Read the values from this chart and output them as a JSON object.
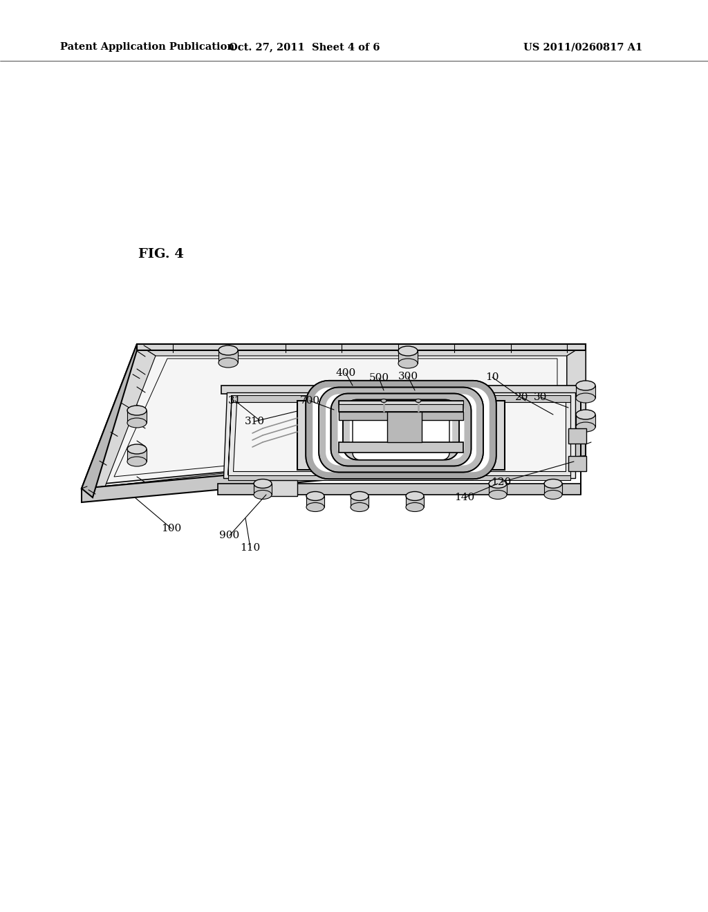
{
  "header_left": "Patent Application Publication",
  "header_mid": "Oct. 27, 2011  Sheet 4 of 6",
  "header_right": "US 2011/0260817 A1",
  "fig_label": "FIG. 4",
  "bg": "#ffffff",
  "lc": "#000000",
  "gray0": "#f5f5f5",
  "gray1": "#e8e8e8",
  "gray2": "#d8d8d8",
  "gray3": "#c8c8c8",
  "gray4": "#b8b8b8",
  "gray5": "#a8a8a8",
  "gray6": "#909090",
  "gray7": "#707070"
}
